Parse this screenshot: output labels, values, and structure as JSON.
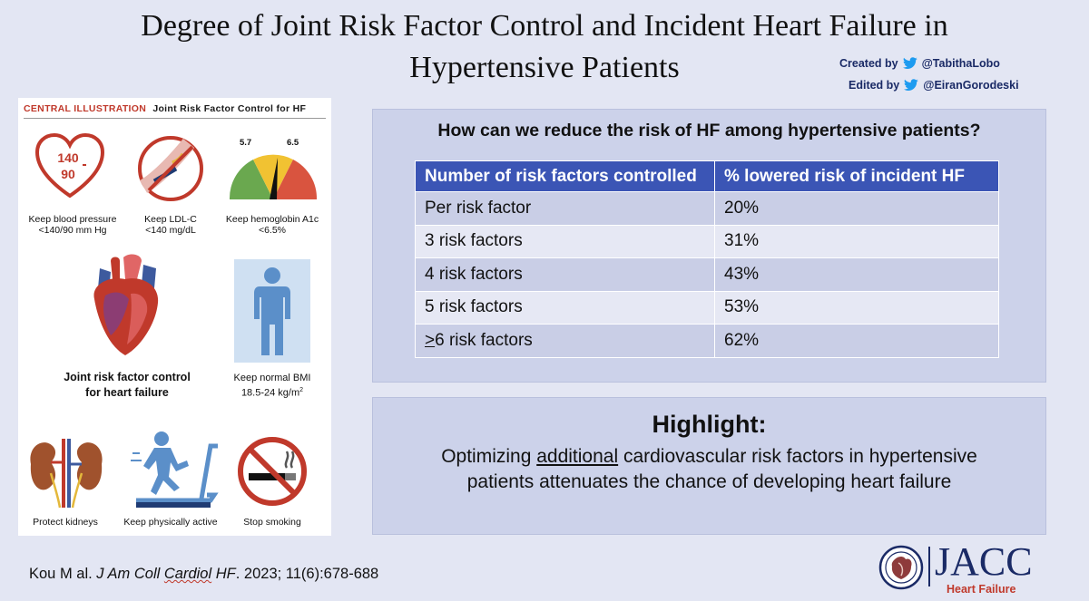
{
  "title": {
    "line1": "Degree of Joint Risk Factor Control and Incident Heart Failure in",
    "line2": "Hypertensive Patients"
  },
  "credits": {
    "created_label": "Created by",
    "created_handle": "@TabithaLobo",
    "edited_label": "Edited by",
    "edited_handle": "@EiranGorodeski",
    "icon": "twitter-bird-icon"
  },
  "illustration": {
    "header_label": "CENTRAL ILLUSTRATION",
    "header_sub": "Joint Risk Factor Control for HF",
    "bp_icon_text_top": "140",
    "bp_icon_text_bottom": "90",
    "gauge_left": "5.7",
    "gauge_right": "6.5",
    "items": [
      {
        "title": "Keep blood pressure",
        "detail": "<140/90 mm Hg",
        "icon": "heart-bp-icon"
      },
      {
        "title": "Keep LDL-C",
        "detail": "<140 mg/dL",
        "icon": "artery-plaque-icon"
      },
      {
        "title": "Keep hemoglobin A1c",
        "detail": "<6.5%",
        "icon": "gauge-icon"
      },
      {
        "title": "Keep normal BMI",
        "detail": "18.5-24 kg/m",
        "detail_sup": "2",
        "icon": "person-icon"
      },
      {
        "title": "Protect kidneys",
        "icon": "kidneys-icon"
      },
      {
        "title": "Keep physically active",
        "icon": "treadmill-icon"
      },
      {
        "title": "Stop smoking",
        "icon": "no-smoking-icon"
      }
    ],
    "center_label_line1": "Joint risk factor control",
    "center_label_line2": "for heart failure",
    "center_icon": "heart-anatomy-icon"
  },
  "question": {
    "title": "How can we reduce the risk of HF among hypertensive patients?",
    "columns": [
      "Number of risk factors controlled",
      "% lowered risk of incident HF"
    ],
    "rows": [
      {
        "label": "Per risk factor",
        "value": "20%"
      },
      {
        "label": "3 risk factors",
        "value": "31%"
      },
      {
        "label": "4 risk factors",
        "value": "43%"
      },
      {
        "label": "5 risk factors",
        "value": "53%"
      },
      {
        "label_prefix": ">",
        "label": "6 risk factors",
        "value": "62%"
      }
    ]
  },
  "highlight": {
    "title": "Highlight:",
    "text_before": "Optimizing ",
    "text_underlined": "additional",
    "text_after_line1": " cardiovascular risk factors in hypertensive",
    "text_line2": "patients attenuates the chance of developing heart failure"
  },
  "citation": {
    "authors": "Kou M al. ",
    "journal_a": "J Am Coll ",
    "journal_b": "Cardiol",
    "journal_c": " HF",
    "rest": ". 2023; 11(6):678-688"
  },
  "logo": {
    "name": "JACC",
    "subtitle": "Heart Failure",
    "icon": "jacc-seal-icon"
  }
}
